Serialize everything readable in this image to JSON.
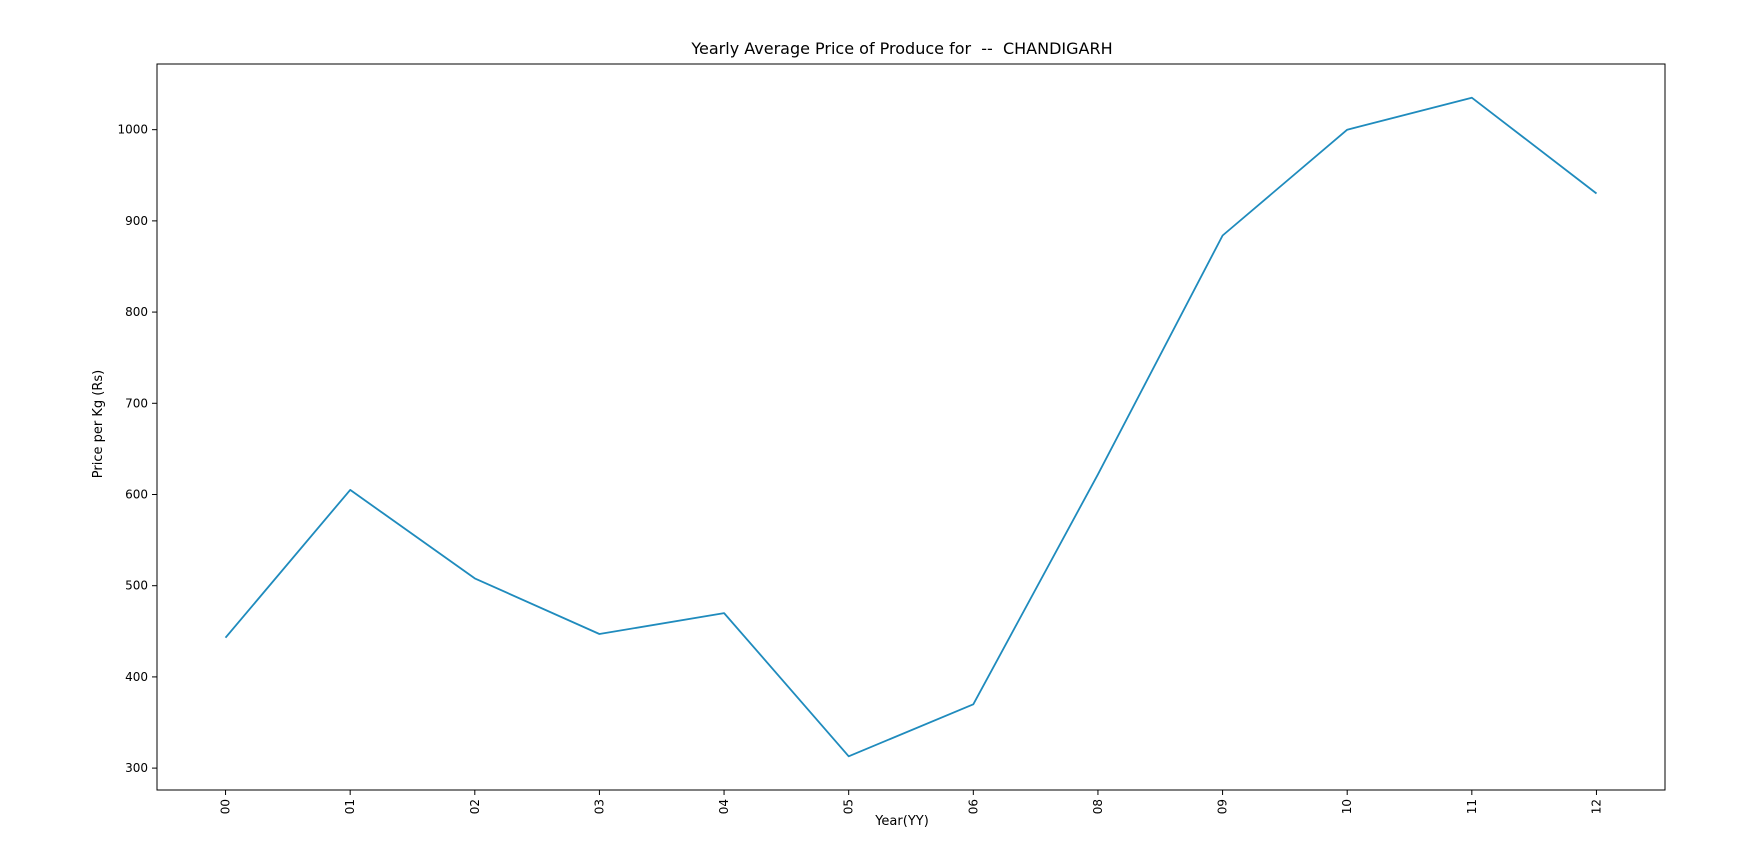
{
  "chart_data": {
    "type": "line",
    "title": "Yearly Average Price of Produce for  --  CHANDIGARH",
    "xlabel": "Year(YY)",
    "ylabel": "Price per Kg (Rs)",
    "categories": [
      "00",
      "01",
      "02",
      "03",
      "04",
      "05",
      "06",
      "08",
      "09",
      "10",
      "11",
      "12"
    ],
    "series": [
      {
        "values": [
          443,
          605,
          508,
          447,
          470,
          313,
          370,
          622,
          884,
          1000,
          1035,
          930
        ],
        "color": "#1f8bbd"
      }
    ],
    "ylim": [
      276,
      1072
    ],
    "yticks": [
      300,
      400,
      500,
      600,
      700,
      800,
      900,
      1000
    ],
    "grid": false,
    "legend": false
  }
}
